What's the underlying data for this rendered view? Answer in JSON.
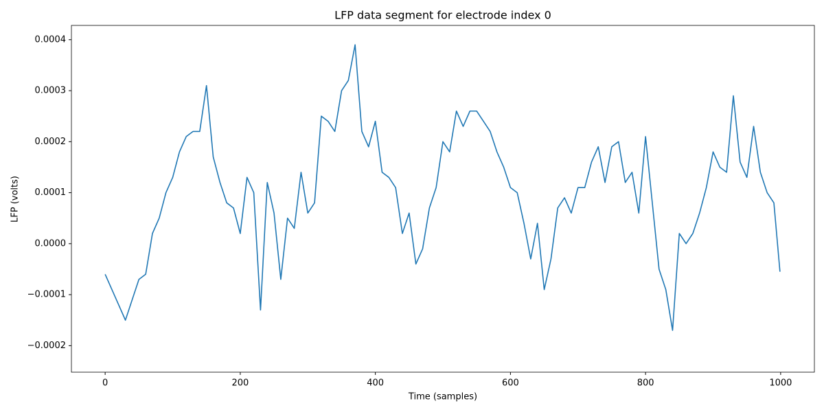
{
  "chart_data": {
    "type": "line",
    "title": "LFP data segment for electrode index 0",
    "x_label": "Time (samples)",
    "y_label": "LFP (volts)",
    "x": [
      0,
      10,
      20,
      30,
      40,
      50,
      60,
      70,
      80,
      90,
      100,
      110,
      120,
      130,
      140,
      150,
      160,
      170,
      180,
      190,
      200,
      210,
      220,
      230,
      240,
      250,
      260,
      270,
      280,
      290,
      300,
      310,
      320,
      330,
      340,
      350,
      360,
      370,
      380,
      390,
      400,
      410,
      420,
      430,
      440,
      450,
      460,
      470,
      480,
      490,
      500,
      510,
      520,
      530,
      540,
      550,
      560,
      570,
      580,
      590,
      600,
      610,
      620,
      630,
      640,
      650,
      660,
      670,
      680,
      690,
      700,
      710,
      720,
      730,
      740,
      750,
      760,
      770,
      780,
      790,
      800,
      810,
      820,
      830,
      840,
      850,
      860,
      870,
      880,
      890,
      900,
      910,
      920,
      930,
      940,
      950,
      960,
      970,
      980,
      990,
      999
    ],
    "series": [
      {
        "name": "LFP",
        "color": "#1f77b4",
        "values": [
          -6e-05,
          -9e-05,
          -0.00012,
          -0.00015,
          -0.00011,
          -7e-05,
          -6e-05,
          2e-05,
          5e-05,
          0.0001,
          0.00013,
          0.00018,
          0.00021,
          0.00022,
          0.00022,
          0.00031,
          0.00017,
          0.00012,
          8e-05,
          7e-05,
          2e-05,
          0.00013,
          0.0001,
          -0.00013,
          0.00012,
          6e-05,
          -7e-05,
          5e-05,
          3e-05,
          0.00014,
          6e-05,
          8e-05,
          0.00025,
          0.00024,
          0.00022,
          0.0003,
          0.00032,
          0.00039,
          0.00022,
          0.00019,
          0.00024,
          0.00014,
          0.00013,
          0.00011,
          2e-05,
          6e-05,
          -4e-05,
          -1e-05,
          7e-05,
          0.00011,
          0.0002,
          0.00018,
          0.00026,
          0.00023,
          0.00026,
          0.00026,
          0.00024,
          0.00022,
          0.00018,
          0.00015,
          0.00011,
          0.0001,
          4e-05,
          -3e-05,
          4e-05,
          -9e-05,
          -3e-05,
          7e-05,
          9e-05,
          6e-05,
          0.00011,
          0.00011,
          0.00016,
          0.00019,
          0.00012,
          0.00019,
          0.0002,
          0.00012,
          0.00014,
          6e-05,
          0.00021,
          8e-05,
          -5e-05,
          -9e-05,
          -0.00017,
          2e-05,
          0.0,
          2e-05,
          6e-05,
          0.00011,
          0.00018,
          0.00015,
          0.00014,
          0.00029,
          0.00016,
          0.00013,
          0.00023,
          0.00014,
          0.0001,
          8e-05,
          -5.5e-05
        ]
      }
    ],
    "xlim": [
      -49.95,
      1049.95
    ],
    "ylim": [
      -0.000252,
      0.000428
    ],
    "xticks": [
      0,
      200,
      400,
      600,
      800,
      1000
    ],
    "yticks": [
      {
        "value": -0.0002,
        "label": "−0.0002"
      },
      {
        "value": -0.0001,
        "label": "−0.0001"
      },
      {
        "value": 0,
        "label": "0.0000"
      },
      {
        "value": 0.0001,
        "label": "0.0001"
      },
      {
        "value": 0.0002,
        "label": "0.0002"
      },
      {
        "value": 0.0003,
        "label": "0.0003"
      },
      {
        "value": 0.0004,
        "label": "0.0004"
      }
    ],
    "grid": false
  }
}
